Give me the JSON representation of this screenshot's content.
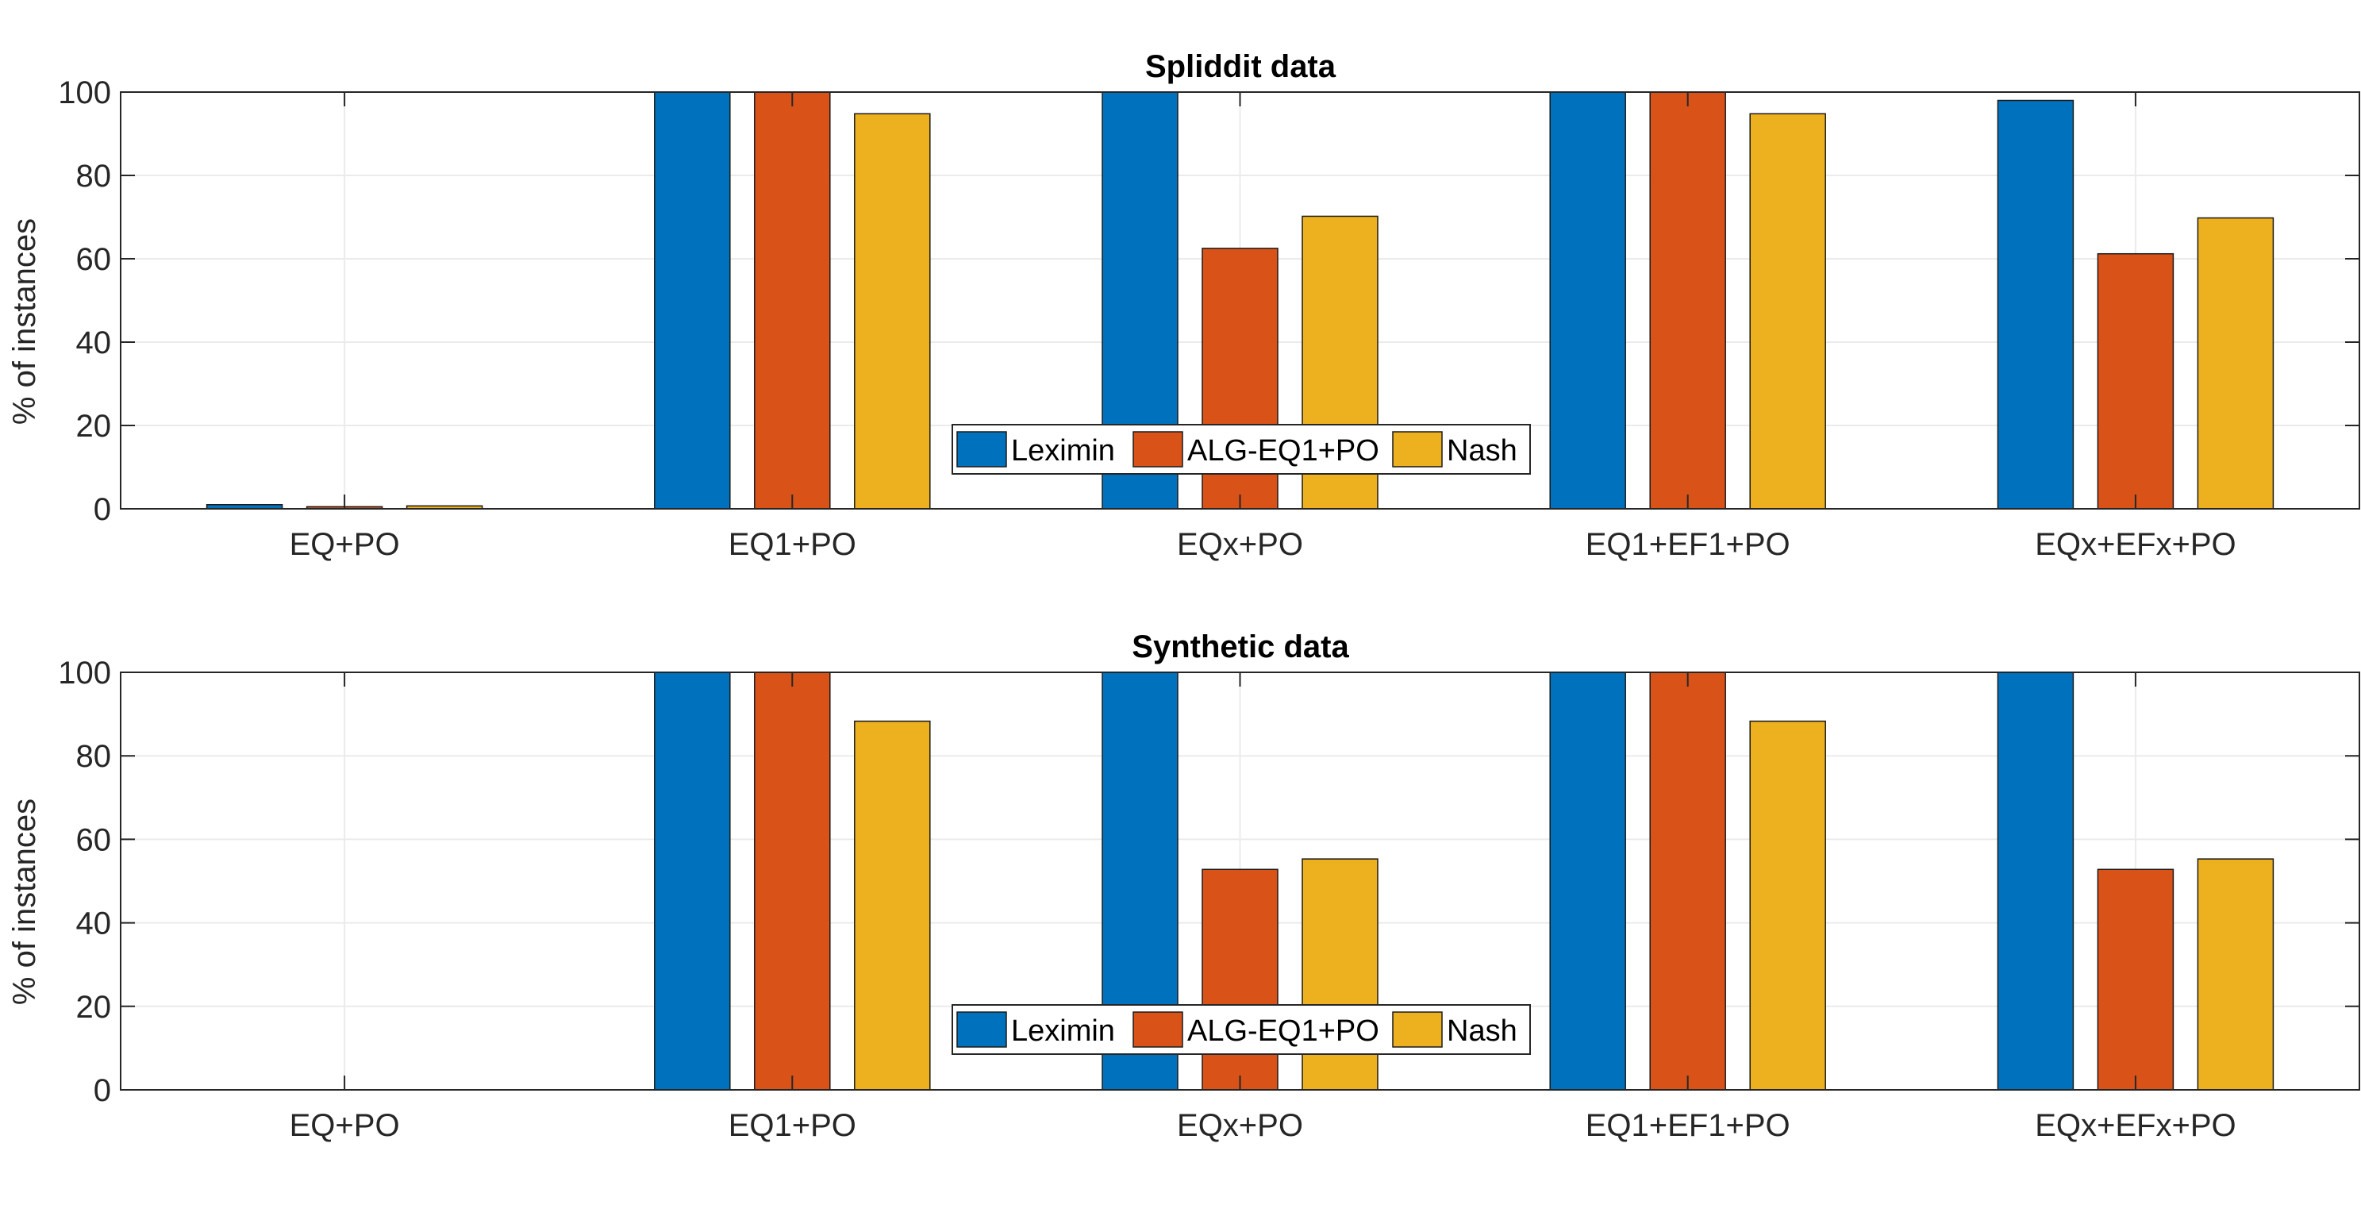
{
  "colors": {
    "series": [
      "#0072BD",
      "#D95319",
      "#EDB120"
    ],
    "axis": "#262626",
    "grid": "#ebebeb",
    "edge": "#1a1a1a"
  },
  "chart_data": [
    {
      "type": "bar",
      "title": "Spliddit data",
      "xlabel": "",
      "ylabel": "% of instances",
      "ylim": [
        0,
        100
      ],
      "yticks": [
        "0",
        "20",
        "40",
        "60",
        "80",
        "100"
      ],
      "categories": [
        "EQ+PO",
        "EQ1+PO",
        "EQx+PO",
        "EQ1+EF1+PO",
        "EQx+EFx+PO"
      ],
      "grid": true,
      "legend": "bottom-center",
      "series": [
        {
          "name": "Leximin",
          "values": [
            1,
            100,
            100,
            100,
            98
          ]
        },
        {
          "name": "ALG-EQ1+PO",
          "values": [
            0.5,
            100,
            62.5,
            100,
            61.2
          ]
        },
        {
          "name": "Nash",
          "values": [
            0.7,
            94.8,
            70.2,
            94.8,
            69.8
          ]
        }
      ]
    },
    {
      "type": "bar",
      "title": "Synthetic data",
      "xlabel": "",
      "ylabel": "% of instances",
      "ylim": [
        0,
        100
      ],
      "yticks": [
        "0",
        "20",
        "40",
        "60",
        "80",
        "100"
      ],
      "categories": [
        "EQ+PO",
        "EQ1+PO",
        "EQx+PO",
        "EQ1+EF1+PO",
        "EQx+EFx+PO"
      ],
      "grid": true,
      "legend": "bottom-center",
      "series": [
        {
          "name": "Leximin",
          "values": [
            0,
            100,
            100,
            100,
            100
          ]
        },
        {
          "name": "ALG-EQ1+PO",
          "values": [
            0,
            100,
            52.8,
            100,
            52.8
          ]
        },
        {
          "name": "Nash",
          "values": [
            0,
            88.3,
            55.3,
            88.3,
            55.3
          ]
        }
      ]
    }
  ]
}
